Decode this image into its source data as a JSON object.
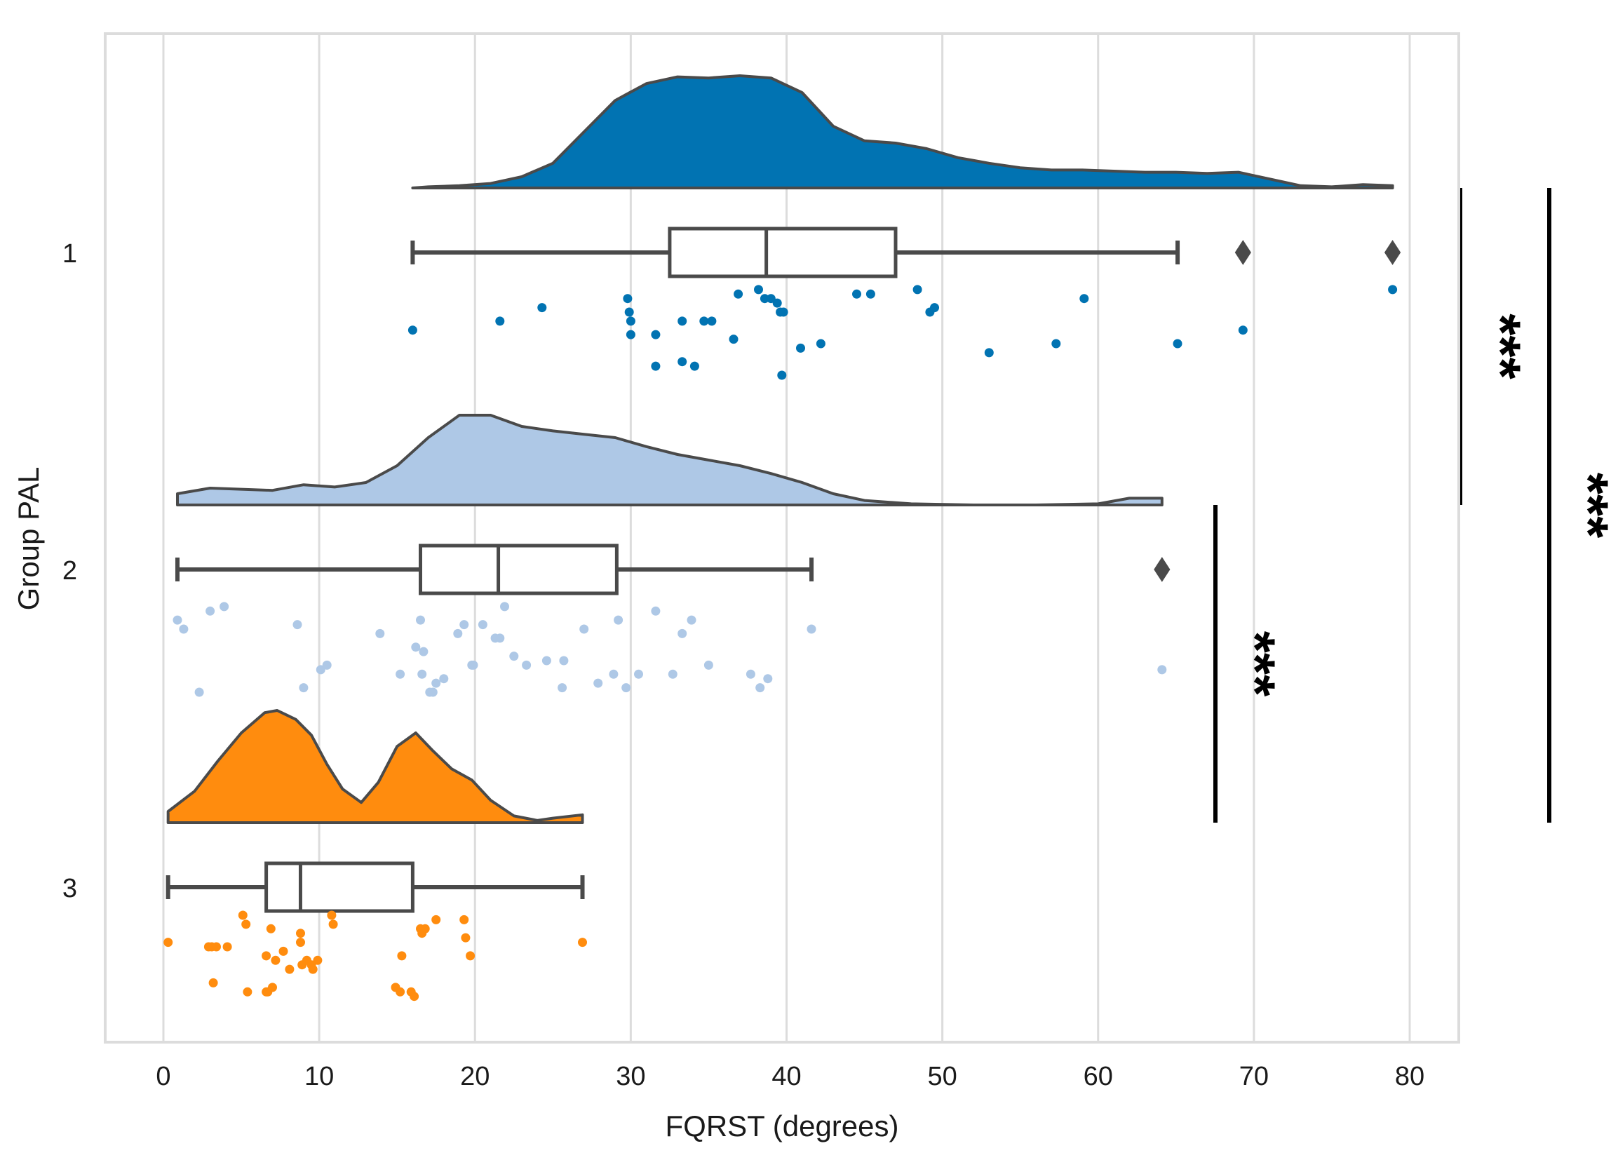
{
  "chart_data": {
    "type": "raincloud",
    "title": "",
    "xlabel": "FQRST (degrees)",
    "ylabel": "Group PAL",
    "xlim": [
      -3.5,
      83
    ],
    "xticks": [
      0,
      10,
      20,
      30,
      40,
      50,
      60,
      70,
      80
    ],
    "grid": true,
    "groups": [
      {
        "name": "1",
        "color": "#0173B2",
        "box": {
          "whisker_low": 16.0,
          "q1": 32.5,
          "median": 38.7,
          "q3": 47.0,
          "whisker_high": 65.1
        },
        "outliers": [
          69.3,
          78.9
        ],
        "points": [
          [
            16.0,
            0.2
          ],
          [
            21.6,
            0.18
          ],
          [
            24.3,
            0.15
          ],
          [
            29.8,
            0.13
          ],
          [
            29.9,
            0.16
          ],
          [
            30.0,
            0.21
          ],
          [
            30.0,
            0.18
          ],
          [
            31.6,
            0.28
          ],
          [
            31.6,
            0.21
          ],
          [
            33.3,
            0.18
          ],
          [
            33.3,
            0.27
          ],
          [
            34.1,
            0.28
          ],
          [
            34.7,
            0.18
          ],
          [
            35.2,
            0.18
          ],
          [
            36.6,
            0.22
          ],
          [
            36.9,
            0.12
          ],
          [
            38.2,
            0.11
          ],
          [
            38.6,
            0.13
          ],
          [
            39.0,
            0.13
          ],
          [
            39.4,
            0.14
          ],
          [
            39.6,
            0.16
          ],
          [
            39.7,
            0.3
          ],
          [
            39.8,
            0.16
          ],
          [
            40.9,
            0.24
          ],
          [
            42.2,
            0.23
          ],
          [
            44.5,
            0.12
          ],
          [
            45.4,
            0.12
          ],
          [
            48.4,
            0.11
          ],
          [
            49.2,
            0.16
          ],
          [
            49.5,
            0.15
          ],
          [
            53.0,
            0.25
          ],
          [
            57.3,
            0.23
          ],
          [
            59.1,
            0.13
          ],
          [
            65.1,
            0.23
          ],
          [
            69.3,
            0.2
          ],
          [
            78.9,
            0.11
          ]
        ],
        "density": [
          [
            16.0,
            0
          ],
          [
            17.0,
            0.01
          ],
          [
            19.0,
            0.02
          ],
          [
            21.0,
            0.04
          ],
          [
            23.0,
            0.1
          ],
          [
            25.0,
            0.22
          ],
          [
            27.0,
            0.5
          ],
          [
            29.0,
            0.78
          ],
          [
            31.0,
            0.93
          ],
          [
            33.0,
            0.99
          ],
          [
            35.0,
            0.98
          ],
          [
            37.0,
            1.0
          ],
          [
            39.0,
            0.98
          ],
          [
            41.0,
            0.85
          ],
          [
            43.0,
            0.55
          ],
          [
            45.0,
            0.42
          ],
          [
            47.0,
            0.4
          ],
          [
            49.0,
            0.35
          ],
          [
            51.0,
            0.27
          ],
          [
            53.0,
            0.22
          ],
          [
            55.0,
            0.18
          ],
          [
            57.0,
            0.16
          ],
          [
            59.0,
            0.16
          ],
          [
            61.0,
            0.15
          ],
          [
            63.0,
            0.14
          ],
          [
            65.0,
            0.14
          ],
          [
            67.0,
            0.13
          ],
          [
            69.0,
            0.14
          ],
          [
            71.0,
            0.08
          ],
          [
            73.0,
            0.02
          ],
          [
            75.0,
            0.01
          ],
          [
            77.0,
            0.03
          ],
          [
            78.9,
            0.02
          ]
        ]
      },
      {
        "name": "2",
        "color": "#AEC8E6",
        "box": {
          "whisker_low": 0.9,
          "q1": 16.5,
          "median": 21.5,
          "q3": 29.1,
          "whisker_high": 41.6
        },
        "outliers": [
          64.1
        ],
        "points": [
          [
            0.9,
            0.14
          ],
          [
            1.3,
            0.16
          ],
          [
            2.3,
            0.3
          ],
          [
            3.0,
            0.12
          ],
          [
            3.9,
            0.11
          ],
          [
            8.6,
            0.15
          ],
          [
            9.0,
            0.29
          ],
          [
            10.1,
            0.25
          ],
          [
            10.5,
            0.24
          ],
          [
            13.9,
            0.17
          ],
          [
            15.2,
            0.26
          ],
          [
            16.2,
            0.2
          ],
          [
            16.5,
            0.14
          ],
          [
            16.6,
            0.26
          ],
          [
            16.7,
            0.21
          ],
          [
            17.1,
            0.3
          ],
          [
            17.3,
            0.3
          ],
          [
            17.5,
            0.28
          ],
          [
            18.0,
            0.27
          ],
          [
            18.9,
            0.17
          ],
          [
            19.3,
            0.15
          ],
          [
            19.8,
            0.24
          ],
          [
            19.9,
            0.24
          ],
          [
            20.5,
            0.15
          ],
          [
            21.3,
            0.18
          ],
          [
            21.6,
            0.18
          ],
          [
            21.9,
            0.11
          ],
          [
            22.5,
            0.22
          ],
          [
            23.3,
            0.24
          ],
          [
            24.6,
            0.23
          ],
          [
            25.6,
            0.29
          ],
          [
            25.7,
            0.23
          ],
          [
            27.0,
            0.16
          ],
          [
            27.9,
            0.28
          ],
          [
            28.9,
            0.26
          ],
          [
            29.2,
            0.14
          ],
          [
            29.7,
            0.29
          ],
          [
            30.5,
            0.26
          ],
          [
            31.6,
            0.12
          ],
          [
            32.7,
            0.26
          ],
          [
            33.3,
            0.17
          ],
          [
            33.9,
            0.14
          ],
          [
            35.0,
            0.24
          ],
          [
            37.7,
            0.26
          ],
          [
            38.3,
            0.29
          ],
          [
            38.8,
            0.27
          ],
          [
            41.6,
            0.16
          ],
          [
            64.1,
            0.25
          ]
        ],
        "density": [
          [
            0.9,
            0.1
          ],
          [
            3.0,
            0.15
          ],
          [
            5.0,
            0.14
          ],
          [
            7.0,
            0.13
          ],
          [
            9.0,
            0.18
          ],
          [
            11.0,
            0.16
          ],
          [
            13.0,
            0.2
          ],
          [
            15.0,
            0.35
          ],
          [
            17.0,
            0.6
          ],
          [
            19.0,
            0.8
          ],
          [
            21.0,
            0.8
          ],
          [
            23.0,
            0.7
          ],
          [
            25.0,
            0.66
          ],
          [
            27.0,
            0.63
          ],
          [
            29.0,
            0.6
          ],
          [
            31.0,
            0.52
          ],
          [
            33.0,
            0.45
          ],
          [
            35.0,
            0.4
          ],
          [
            37.0,
            0.35
          ],
          [
            39.0,
            0.28
          ],
          [
            41.0,
            0.2
          ],
          [
            43.0,
            0.1
          ],
          [
            45.0,
            0.04
          ],
          [
            48.0,
            0.01
          ],
          [
            52.0,
            0.0
          ],
          [
            56.0,
            0.0
          ],
          [
            60.0,
            0.01
          ],
          [
            62.0,
            0.06
          ],
          [
            64.1,
            0.06
          ]
        ]
      },
      {
        "name": "3",
        "color": "#FF8C0E",
        "box": {
          "whisker_low": 0.3,
          "q1": 6.6,
          "median": 8.8,
          "q3": 16.0,
          "whisker_high": 26.9
        },
        "outliers": [],
        "points": [
          [
            0.3,
            0.15
          ],
          [
            2.9,
            0.16
          ],
          [
            3.1,
            0.16
          ],
          [
            3.2,
            0.24
          ],
          [
            3.4,
            0.16
          ],
          [
            4.1,
            0.16
          ],
          [
            5.1,
            0.09
          ],
          [
            5.3,
            0.11
          ],
          [
            5.4,
            0.26
          ],
          [
            6.6,
            0.26
          ],
          [
            6.6,
            0.18
          ],
          [
            6.7,
            0.26
          ],
          [
            6.9,
            0.12
          ],
          [
            7.0,
            0.25
          ],
          [
            7.2,
            0.19
          ],
          [
            7.7,
            0.17
          ],
          [
            8.1,
            0.21
          ],
          [
            8.8,
            0.13
          ],
          [
            8.8,
            0.15
          ],
          [
            8.9,
            0.2
          ],
          [
            9.2,
            0.19
          ],
          [
            9.5,
            0.2
          ],
          [
            9.6,
            0.21
          ],
          [
            9.9,
            0.19
          ],
          [
            10.8,
            0.09
          ],
          [
            10.9,
            0.11
          ],
          [
            14.9,
            0.25
          ],
          [
            15.2,
            0.26
          ],
          [
            15.3,
            0.18
          ],
          [
            15.9,
            0.26
          ],
          [
            16.1,
            0.27
          ],
          [
            16.5,
            0.12
          ],
          [
            16.6,
            0.13
          ],
          [
            16.8,
            0.12
          ],
          [
            17.5,
            0.1
          ],
          [
            19.3,
            0.1
          ],
          [
            19.4,
            0.14
          ],
          [
            19.7,
            0.18
          ],
          [
            26.9,
            0.15
          ]
        ],
        "density": [
          [
            0.3,
            0.1
          ],
          [
            2.0,
            0.28
          ],
          [
            3.5,
            0.55
          ],
          [
            5.0,
            0.8
          ],
          [
            6.5,
            0.98
          ],
          [
            7.3,
            1.0
          ],
          [
            8.5,
            0.92
          ],
          [
            9.5,
            0.78
          ],
          [
            10.5,
            0.52
          ],
          [
            11.5,
            0.3
          ],
          [
            12.7,
            0.18
          ],
          [
            13.8,
            0.36
          ],
          [
            15.0,
            0.68
          ],
          [
            16.2,
            0.8
          ],
          [
            17.3,
            0.64
          ],
          [
            18.5,
            0.48
          ],
          [
            19.8,
            0.38
          ],
          [
            21.0,
            0.2
          ],
          [
            22.5,
            0.06
          ],
          [
            24.0,
            0.02
          ],
          [
            25.0,
            0.04
          ],
          [
            26.9,
            0.07
          ]
        ]
      }
    ],
    "significance": [
      {
        "label": "***",
        "groups": [
          "2",
          "3"
        ]
      },
      {
        "label": "***",
        "groups": [
          "1",
          "2"
        ]
      },
      {
        "label": "***",
        "groups": [
          "1",
          "3"
        ]
      }
    ]
  }
}
